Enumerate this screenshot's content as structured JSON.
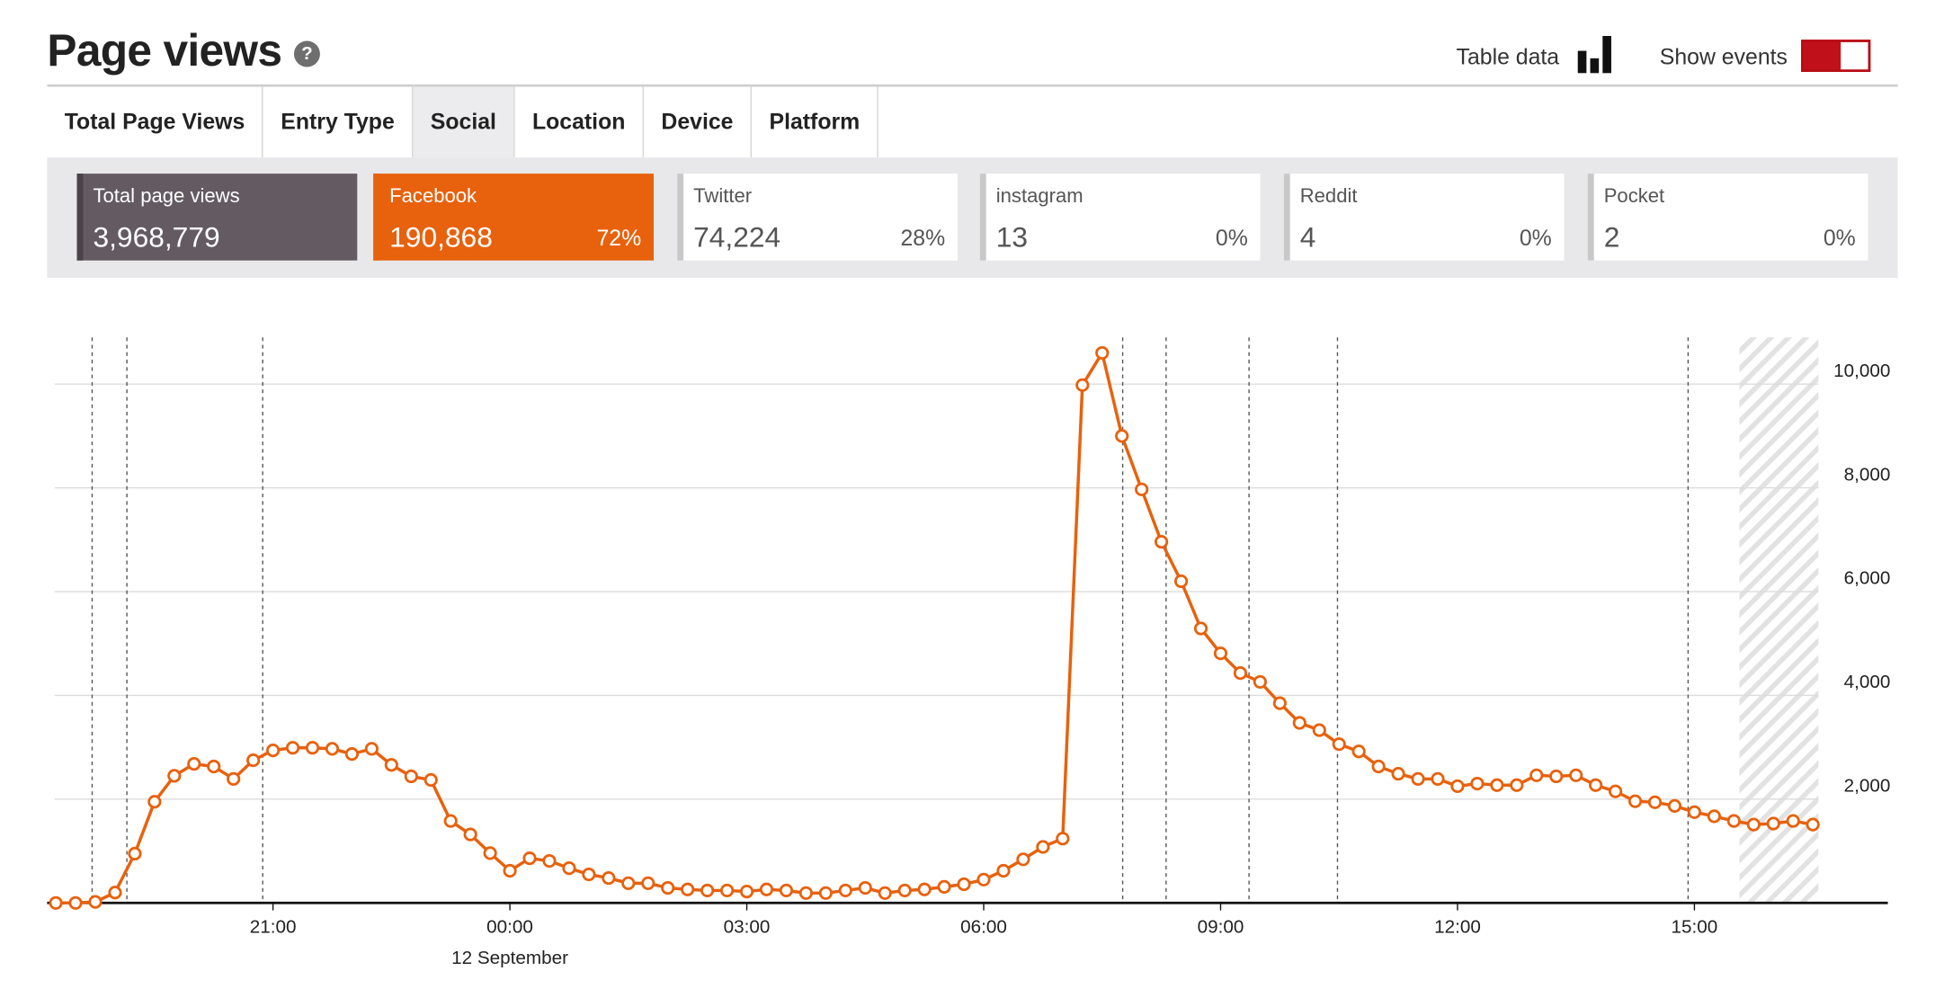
{
  "header": {
    "title": "Page views",
    "table_data": "Table data",
    "show_events": "Show events"
  },
  "tabs": [
    "Total Page Views",
    "Entry Type",
    "Social",
    "Location",
    "Device",
    "Platform"
  ],
  "active_tab": 2,
  "cards": [
    {
      "label": "Total page views",
      "value": "3,968,779"
    },
    {
      "label": "Facebook",
      "value": "190,868",
      "share": "72%"
    },
    {
      "label": "Twitter",
      "value": "74,224",
      "share": "28%"
    },
    {
      "label": "instagram",
      "value": "13",
      "share": "0%"
    },
    {
      "label": "Reddit",
      "value": "4",
      "share": "0%"
    },
    {
      "label": "Pocket",
      "value": "2",
      "share": "0%"
    }
  ],
  "chart_data": {
    "type": "line",
    "x": [
      -5.75,
      -5.5,
      -5.25,
      -5,
      -4.75,
      -4.5,
      -4.25,
      -4,
      -3.75,
      -3.5,
      -3.25,
      -3,
      -2.75,
      -2.5,
      -2.25,
      -2,
      -1.75,
      -1.5,
      -1.25,
      -1,
      -0.75,
      -0.5,
      -0.25,
      0,
      0.25,
      0.5,
      0.75,
      1,
      1.25,
      1.5,
      1.75,
      2,
      2.25,
      2.5,
      2.75,
      3,
      3.25,
      3.5,
      3.75,
      4,
      4.25,
      4.5,
      4.75,
      5,
      5.25,
      5.5,
      5.75,
      6,
      6.25,
      6.5,
      6.75,
      7,
      7.25,
      7.5,
      7.75,
      8,
      8.25,
      8.5,
      8.75,
      9,
      9.25,
      9.5,
      9.75,
      10,
      10.25,
      10.5,
      10.75,
      11,
      11.25,
      11.5,
      11.75,
      12,
      12.25,
      12.5,
      12.75,
      13,
      13.25,
      13.5,
      13.75,
      14,
      14.25,
      14.5,
      14.75,
      15,
      15.25,
      15.5,
      15.75,
      16,
      16.25,
      16.5
    ],
    "series": [
      {
        "color": "#e8610c",
        "values": [
          0,
          0,
          20,
          200,
          950,
          1950,
          2450,
          2680,
          2630,
          2390,
          2750,
          2940,
          2990,
          2990,
          2970,
          2870,
          2970,
          2660,
          2440,
          2370,
          1580,
          1320,
          960,
          620,
          860,
          810,
          670,
          550,
          480,
          380,
          380,
          290,
          260,
          240,
          240,
          220,
          260,
          240,
          190,
          190,
          240,
          290,
          190,
          240,
          260,
          310,
          360,
          450,
          620,
          840,
          1080,
          1240,
          9980,
          10600,
          9000,
          7970,
          6960,
          6200,
          5290,
          4810,
          4430,
          4260,
          3850,
          3470,
          3330,
          3060,
          2920,
          2630,
          2490,
          2390,
          2390,
          2250,
          2300,
          2270,
          2270,
          2460,
          2440,
          2460,
          2270,
          2150,
          1960,
          1940,
          1870,
          1750,
          1670,
          1580,
          1510,
          1530,
          1580,
          1510
        ]
      }
    ],
    "xlim": [
      -5.86,
      17.45
    ],
    "xticks": [
      {
        "value": -3,
        "label": "21:00"
      },
      {
        "value": 0,
        "label": "00:00"
      },
      {
        "value": 3,
        "label": "03:00"
      },
      {
        "value": 6,
        "label": "06:00"
      },
      {
        "value": 9,
        "label": "09:00"
      },
      {
        "value": 12,
        "label": "12:00"
      },
      {
        "value": 15,
        "label": "15:00"
      }
    ],
    "x_date_label": "12 September",
    "ylim": [
      0,
      10900
    ],
    "yticks": [
      {
        "value": 2000,
        "label": "2,000"
      },
      {
        "value": 4000,
        "label": "4,000"
      },
      {
        "value": 6000,
        "label": "6,000"
      },
      {
        "value": 8000,
        "label": "8,000"
      },
      {
        "value": 10000,
        "label": "10,000"
      }
    ],
    "grid": true,
    "events": [
      -5.29,
      -4.85,
      -3.13,
      7.76,
      8.31,
      9.36,
      10.48,
      14.92
    ],
    "shaded_range": [
      15.57,
      16.57
    ]
  }
}
